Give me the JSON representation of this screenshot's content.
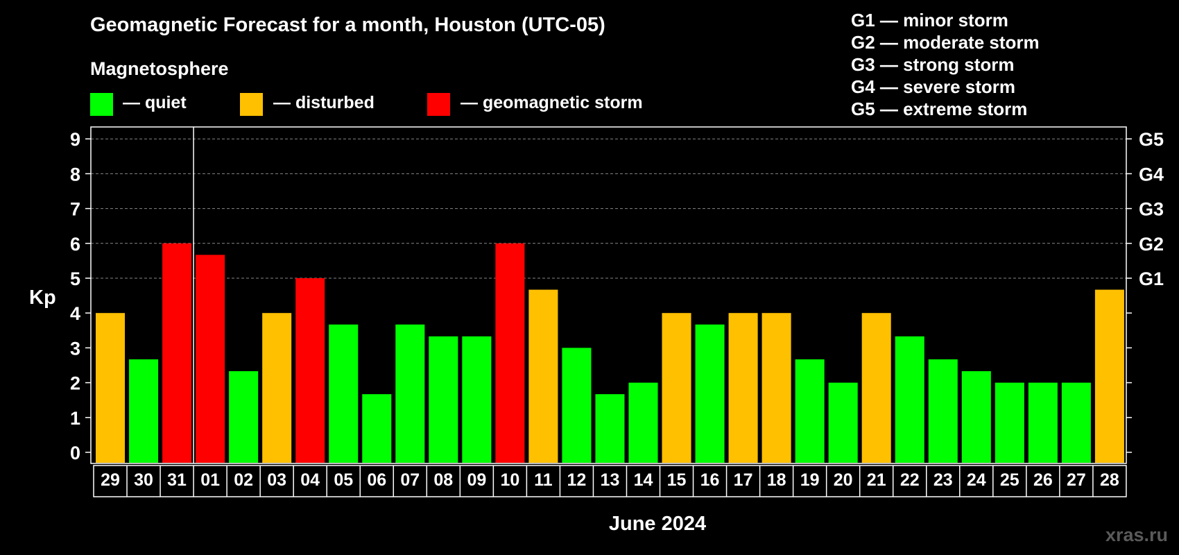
{
  "title": "Geomagnetic Forecast for a month, Houston (UTC-05)",
  "legend": {
    "heading": "Magnetosphere",
    "items": [
      {
        "label": "— quiet",
        "color": "#00ff00"
      },
      {
        "label": "— disturbed",
        "color": "#ffc000"
      },
      {
        "label": "— geomagnetic storm",
        "color": "#ff0000"
      }
    ]
  },
  "storm_levels": [
    "G1 — minor storm",
    "G2 — moderate storm",
    "G3 — strong storm",
    "G4 — severe storm",
    "G5 — extreme storm"
  ],
  "watermark": "xras.ru",
  "chart_data": {
    "type": "bar",
    "ylabel": "Kp",
    "xlabel": "June 2024",
    "ylim": [
      0,
      9
    ],
    "yticks": [
      0,
      1,
      2,
      3,
      4,
      5,
      6,
      7,
      8,
      9
    ],
    "right_axis_labels": [
      {
        "value": 5,
        "label": "G1"
      },
      {
        "value": 6,
        "label": "G2"
      },
      {
        "value": 7,
        "label": "G3"
      },
      {
        "value": 8,
        "label": "G4"
      },
      {
        "value": 9,
        "label": "G5"
      }
    ],
    "grid": "horizontal dashed at Kp 5–9",
    "month_divider_after": "31",
    "categories": [
      "29",
      "30",
      "31",
      "01",
      "02",
      "03",
      "04",
      "05",
      "06",
      "07",
      "08",
      "09",
      "10",
      "11",
      "12",
      "13",
      "14",
      "15",
      "16",
      "17",
      "18",
      "19",
      "20",
      "21",
      "22",
      "23",
      "24",
      "25",
      "26",
      "27",
      "28"
    ],
    "values": [
      4,
      2.67,
      6,
      5.67,
      2.33,
      4,
      5,
      3.67,
      1.67,
      3.67,
      3.33,
      3.33,
      6,
      4.67,
      3,
      1.67,
      2,
      4,
      3.67,
      4,
      4,
      2.67,
      2,
      4,
      3.33,
      2.67,
      2.33,
      2,
      2,
      2,
      4.67
    ],
    "levels": [
      "disturbed",
      "quiet",
      "storm",
      "storm",
      "quiet",
      "disturbed",
      "storm",
      "quiet",
      "quiet",
      "quiet",
      "quiet",
      "quiet",
      "storm",
      "disturbed",
      "quiet",
      "quiet",
      "quiet",
      "disturbed",
      "quiet",
      "disturbed",
      "disturbed",
      "quiet",
      "quiet",
      "disturbed",
      "quiet",
      "quiet",
      "quiet",
      "quiet",
      "quiet",
      "quiet",
      "disturbed"
    ],
    "level_colors": {
      "quiet": "#00ff00",
      "disturbed": "#ffc000",
      "storm": "#ff0000"
    }
  }
}
